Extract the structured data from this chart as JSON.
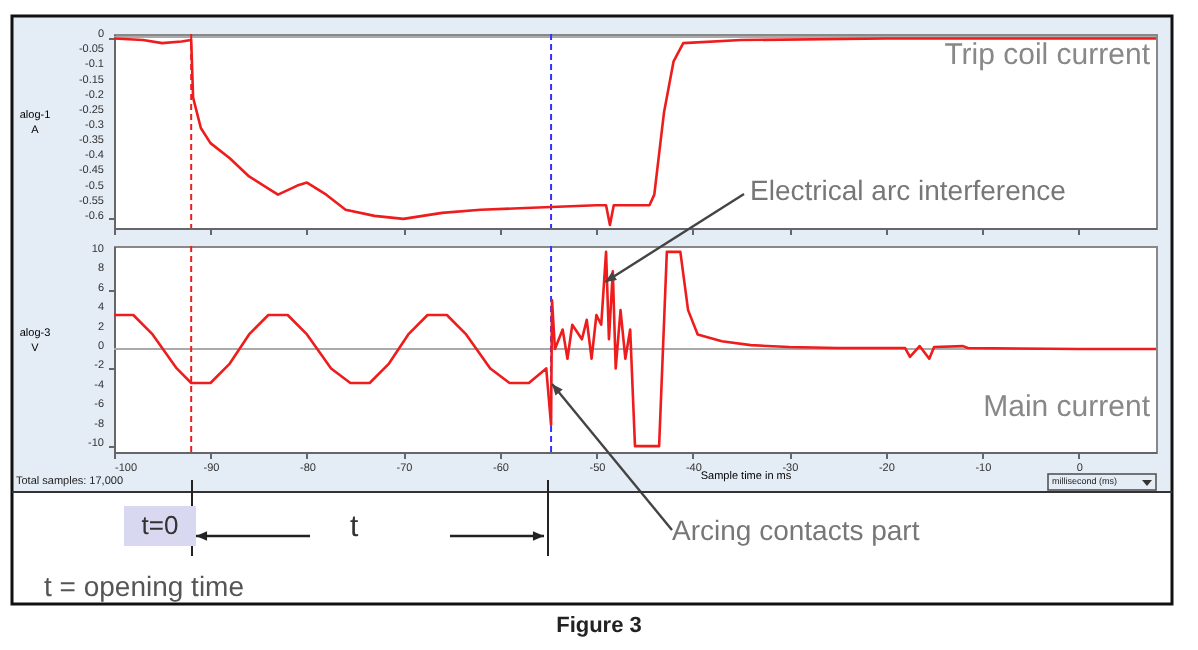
{
  "chart_data": [
    {
      "type": "line",
      "ylabel": "alog-1 A",
      "xlim": [
        -100,
        8
      ],
      "xticks": [
        -100,
        -90,
        -80,
        -70,
        -60,
        -50,
        -40,
        -30,
        -20,
        -10,
        0
      ],
      "ylim": [
        -0.63,
        0.01
      ],
      "yticks": [
        0,
        -0.05,
        -0.1,
        -0.15,
        -0.2,
        -0.25,
        -0.3,
        -0.35,
        -0.4,
        -0.45,
        -0.5,
        -0.55,
        -0.6
      ],
      "tick_labels": "y",
      "grid": false,
      "legend": false,
      "series": [
        {
          "name": "Trip coil current",
          "color": "#ee1c1c",
          "x": [
            -100,
            -97,
            -95,
            -93,
            -92,
            -91.8,
            -91,
            -90,
            -88,
            -86,
            -84,
            -83,
            -81,
            -80,
            -78,
            -76,
            -73,
            -70,
            -66,
            -62,
            -58,
            -54,
            -50,
            -49,
            -48.6,
            -48.2,
            -44.5,
            -44,
            -43,
            -42,
            -41,
            -35,
            -20,
            0,
            8
          ],
          "values": [
            -0.005,
            -0.01,
            -0.02,
            -0.015,
            -0.01,
            -0.2,
            -0.3,
            -0.35,
            -0.4,
            -0.46,
            -0.5,
            -0.52,
            -0.49,
            -0.48,
            -0.52,
            -0.57,
            -0.59,
            -0.6,
            -0.58,
            -0.57,
            -0.565,
            -0.56,
            -0.555,
            -0.555,
            -0.62,
            -0.555,
            -0.555,
            -0.52,
            -0.25,
            -0.08,
            -0.02,
            -0.01,
            -0.005,
            -0.005,
            -0.005
          ]
        }
      ],
      "ref_lines": [
        {
          "axis": "y",
          "value": 0,
          "color": "#aaaaaa"
        },
        {
          "axis": "x",
          "value": -92,
          "color": "#ee1c1c",
          "line_style": "dashed"
        },
        {
          "axis": "x",
          "value": -54.7,
          "color": "#3333ff",
          "line_style": "dashed"
        }
      ]
    },
    {
      "type": "line",
      "ylabel": "alog-3 V",
      "xlabel": "Sample time in ms",
      "xlim": [
        -100,
        8
      ],
      "xticks": [
        -100,
        -90,
        -80,
        -70,
        -60,
        -50,
        -40,
        -30,
        -20,
        -10,
        0
      ],
      "ylim": [
        -10.6,
        10.6
      ],
      "yticks": [
        -10,
        -8,
        -6,
        -4,
        -2,
        0,
        2,
        4,
        6,
        8,
        10
      ],
      "grid": false,
      "legend": false,
      "series": [
        {
          "name": "Main current",
          "color": "#ee1c1c",
          "x": [
            -100,
            -98,
            -96,
            -93.5,
            -92,
            -90,
            -88,
            -86,
            -84,
            -82,
            -80,
            -77.5,
            -75.5,
            -73.5,
            -71.5,
            -69.5,
            -67.5,
            -65.5,
            -63.5,
            -61,
            -59,
            -57,
            -55.2,
            -54.7,
            -54.6,
            -54.3,
            -53.5,
            -53,
            -52.5,
            -51.5,
            -51,
            -50.5,
            -50,
            -49.5,
            -49,
            -48.7,
            -48.3,
            -48,
            -47.5,
            -47,
            -46.5,
            -46,
            -43.5,
            -42.7,
            -41.3,
            -40.5,
            -39.5,
            -37,
            -34,
            -30,
            -25,
            -18,
            -17.5,
            -16.5,
            -15.5,
            -15,
            -12,
            -11.5,
            0,
            8
          ],
          "values": [
            3.5,
            3.5,
            1.5,
            -2,
            -3.5,
            -3.5,
            -1.5,
            1.5,
            3.5,
            3.5,
            1.5,
            -2,
            -3.5,
            -3.5,
            -1.5,
            1.5,
            3.5,
            3.5,
            1.5,
            -2,
            -3.5,
            -3.5,
            -2,
            -7.8,
            5,
            0,
            2,
            -1,
            2.5,
            1,
            3,
            -1,
            3.5,
            2.5,
            10,
            1,
            8,
            -2,
            4,
            -1,
            2,
            -10,
            -10,
            10,
            10,
            4,
            1.5,
            0.8,
            0.4,
            0.2,
            0.1,
            0.1,
            -0.8,
            0.3,
            -1,
            0.2,
            0.3,
            0.1,
            0,
            0
          ]
        }
      ],
      "ref_lines": [
        {
          "axis": "y",
          "value": 0,
          "color": "#aaaaaa"
        },
        {
          "axis": "x",
          "value": -92,
          "color": "#ee1c1c",
          "line_style": "dashed"
        },
        {
          "axis": "x",
          "value": -54.7,
          "color": "#3333ff",
          "line_style": "dashed"
        }
      ],
      "annotations": [
        {
          "text": "Electrical arc interference",
          "x": -49.2,
          "y": 7
        },
        {
          "text": "Arcing contacts part",
          "x": -54.7,
          "y": -3.5
        },
        "t=0",
        "t",
        "t = opening time",
        "Total samples: 17,000",
        "millisecond (ms)",
        "Figure 3"
      ]
    }
  ]
}
